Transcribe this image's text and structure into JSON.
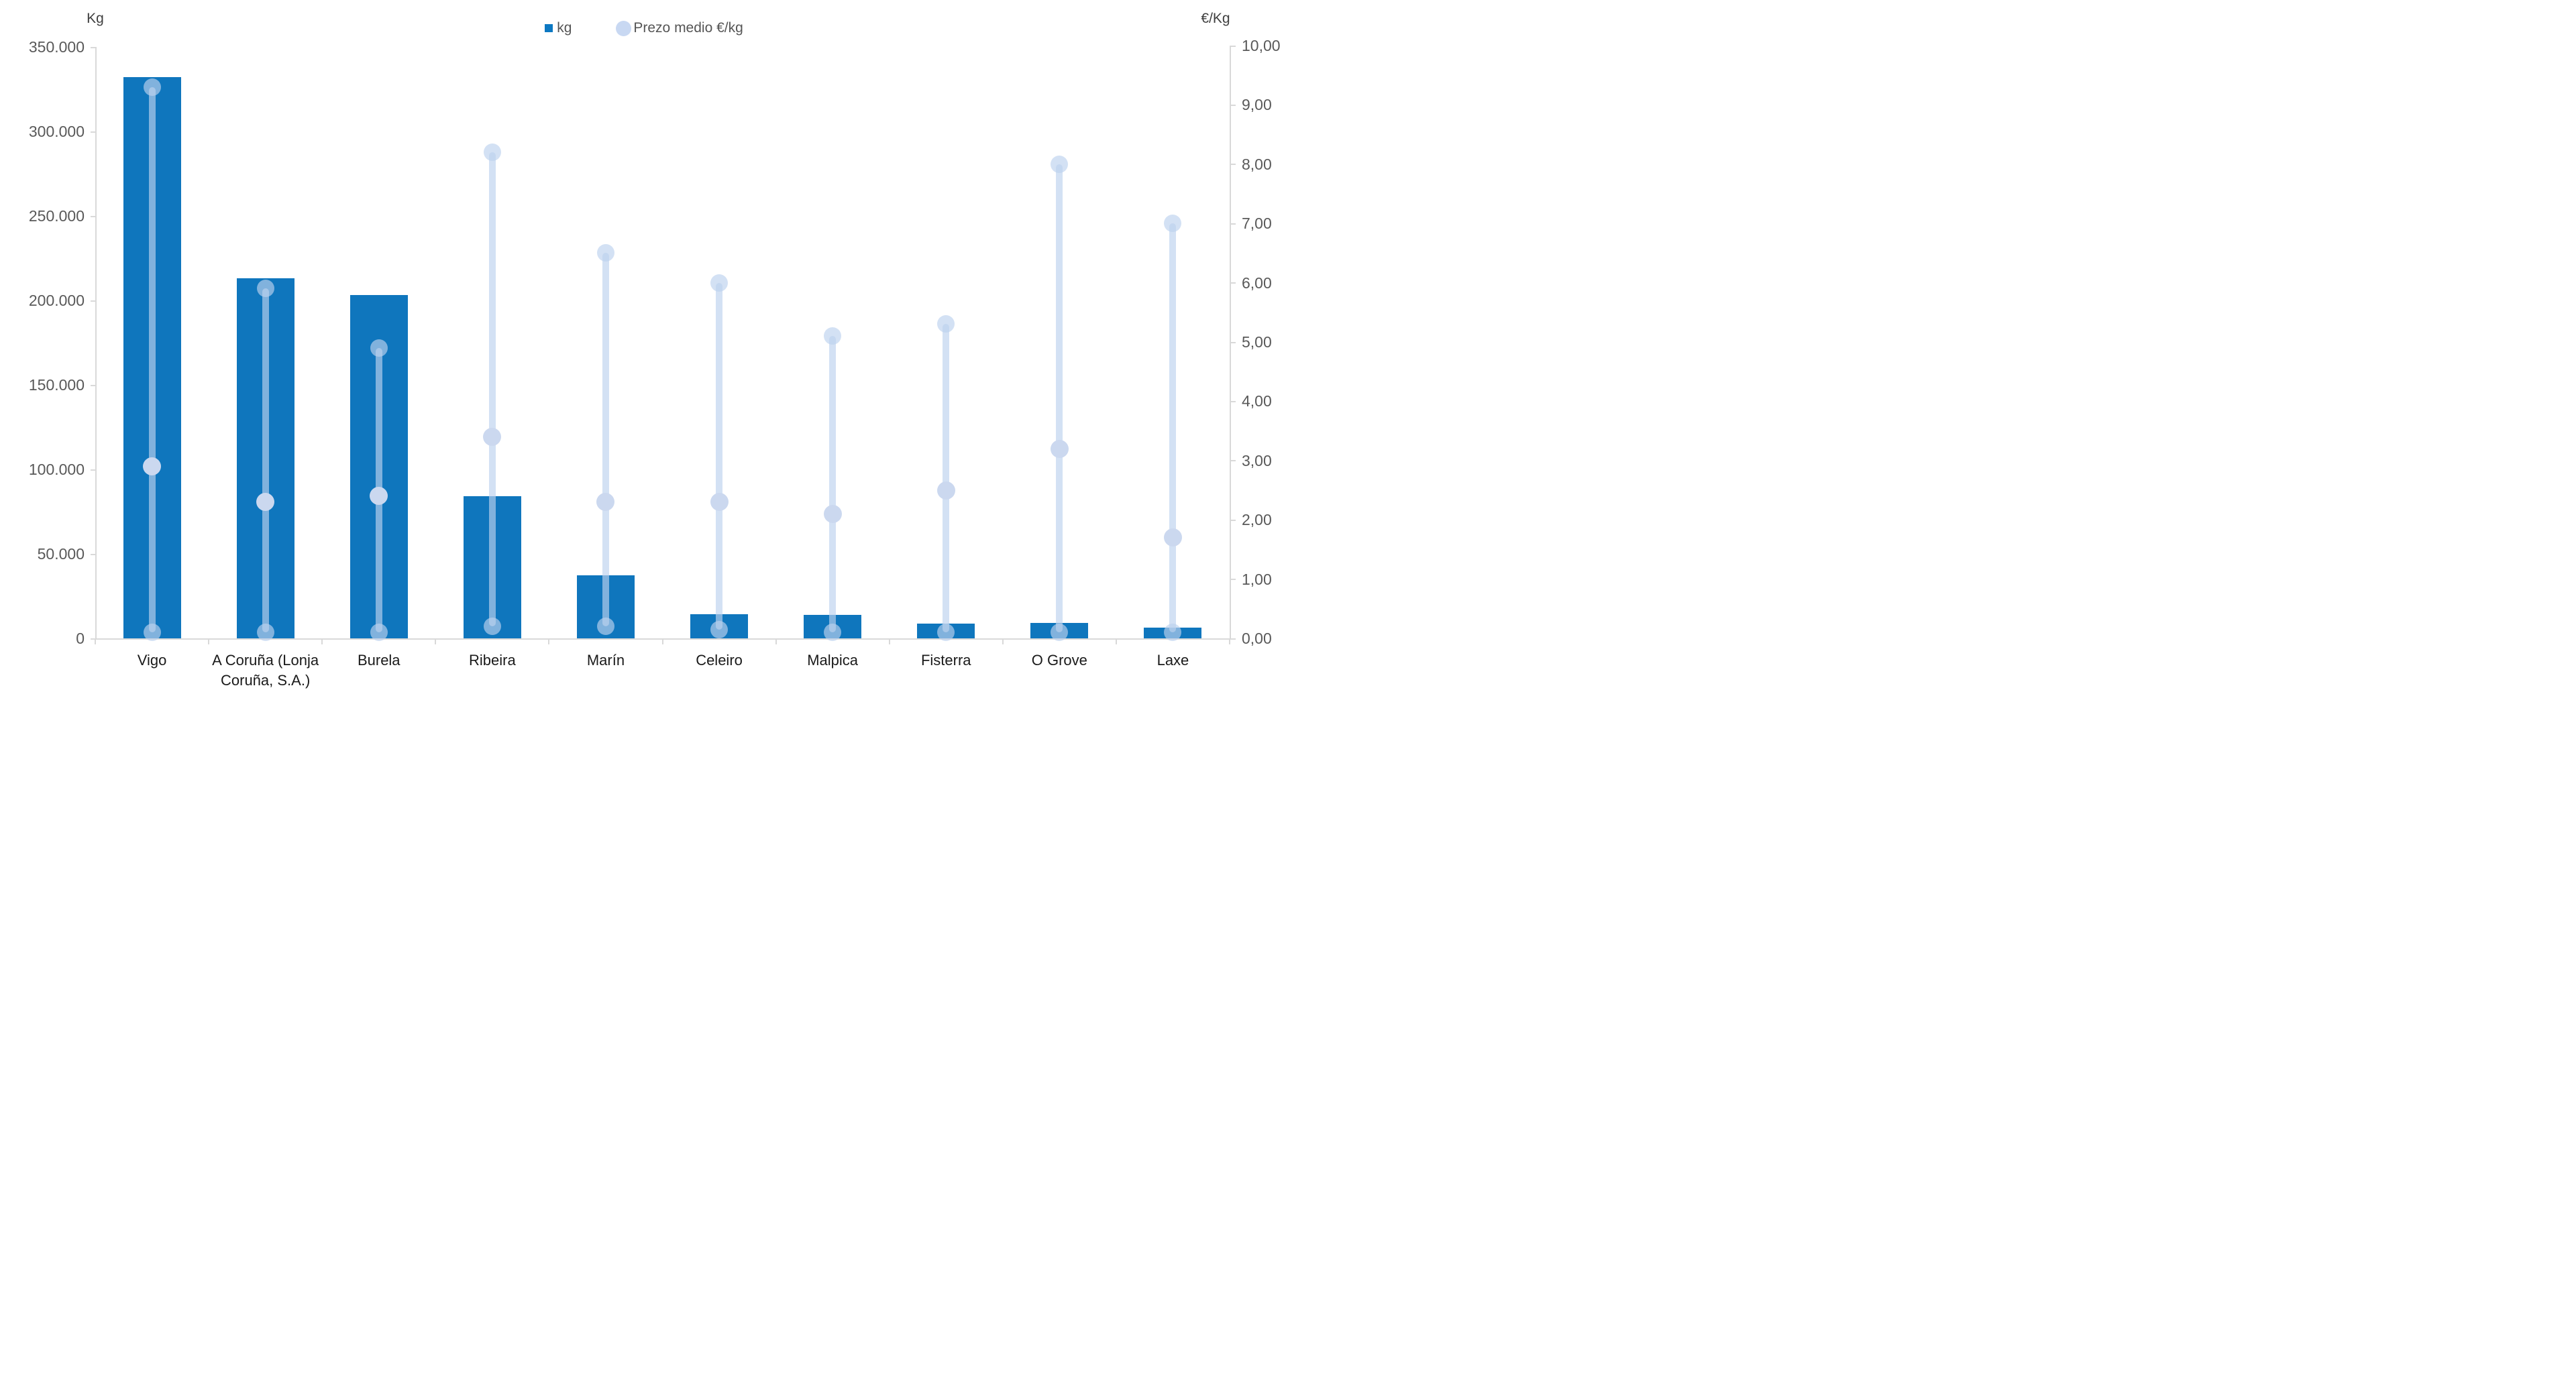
{
  "chart_data": {
    "type": "bar",
    "title": "",
    "categories": [
      "Vigo",
      "A Coruña (Lonja Coruña, S.A.)",
      "Burela",
      "Ribeira",
      "Marín",
      "Celeiro",
      "Malpica",
      "Fisterra",
      "O Grove",
      "Laxe"
    ],
    "series": [
      {
        "name": "kg",
        "type": "bar",
        "axis": "left",
        "values": [
          332000,
          213000,
          203000,
          84000,
          37500,
          14300,
          13700,
          8900,
          9100,
          6500
        ]
      },
      {
        "name": "Prezo medio €/kg",
        "type": "range-lollipop",
        "axis": "right",
        "max": [
          9.3,
          5.9,
          4.9,
          8.2,
          6.5,
          6.0,
          5.1,
          5.3,
          8.0,
          7.0
        ],
        "avg": [
          2.9,
          2.3,
          2.4,
          3.4,
          2.3,
          2.3,
          2.1,
          2.5,
          3.2,
          1.7
        ],
        "min": [
          0.1,
          0.1,
          0.1,
          0.2,
          0.2,
          0.15,
          0.1,
          0.1,
          0.1,
          0.1
        ]
      }
    ],
    "left_axis": {
      "label": "Kg",
      "min": 0,
      "max": 350000,
      "step": 50000,
      "ticks": [
        {
          "value": 350000,
          "label": "350.000"
        },
        {
          "value": 300000,
          "label": "300.000"
        },
        {
          "value": 250000,
          "label": "250.000"
        },
        {
          "value": 200000,
          "label": "200.000"
        },
        {
          "value": 150000,
          "label": "150.000"
        },
        {
          "value": 100000,
          "label": "100.000"
        },
        {
          "value": 50000,
          "label": "50.000"
        },
        {
          "value": 0,
          "label": "0"
        }
      ]
    },
    "right_axis": {
      "label": "€/Kg",
      "min": 0,
      "max": 10,
      "step": 1,
      "ticks": [
        {
          "value": 10,
          "label": "10,00"
        },
        {
          "value": 9,
          "label": "9,00"
        },
        {
          "value": 8,
          "label": "8,00"
        },
        {
          "value": 7,
          "label": "7,00"
        },
        {
          "value": 6,
          "label": "6,00"
        },
        {
          "value": 5,
          "label": "5,00"
        },
        {
          "value": 4,
          "label": "4,00"
        },
        {
          "value": 3,
          "label": "3,00"
        },
        {
          "value": 2,
          "label": "2,00"
        },
        {
          "value": 1,
          "label": "1,00"
        },
        {
          "value": 0,
          "label": "0,00"
        }
      ]
    },
    "legend": [
      {
        "label": "kg",
        "marker": "square",
        "color": "#0c78c2"
      },
      {
        "label": "Prezo medio €/kg",
        "marker": "circle",
        "color": "#c8d8f2"
      }
    ],
    "grid": false,
    "legend_position": "top-center",
    "colors": {
      "bar": "#0f76bd",
      "range": "#bcd2ee",
      "range_opacity": 0.66,
      "avg_dot": "#cbd8ef",
      "axis_line": "#d9d9d9",
      "tick_text": "#595959",
      "category_text": "#1a1a1a",
      "legend_text": "#555555"
    }
  }
}
